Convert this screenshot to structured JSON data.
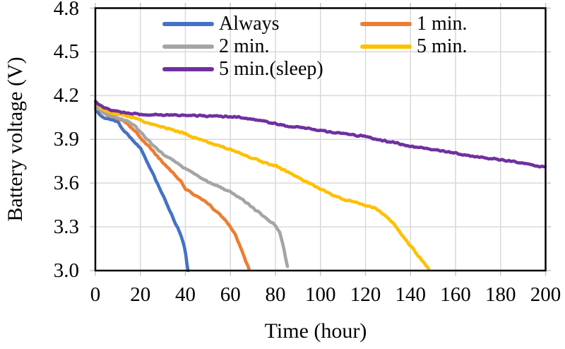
{
  "figure": {
    "background": "#ffffff"
  },
  "colors": {
    "grid": "#D9D9D9",
    "tick": "#C6C6C6",
    "axis_border": "#000000",
    "text": "#000000"
  },
  "chart_data": {
    "type": "line",
    "xlabel": "Time (hour)",
    "ylabel": "Battery voltage (V)",
    "xlim": [
      0,
      200
    ],
    "ylim": [
      3.0,
      4.8
    ],
    "x_ticks": [
      0,
      20,
      40,
      60,
      80,
      100,
      120,
      140,
      160,
      180,
      200
    ],
    "y_ticks": [
      "3.0",
      "3.3",
      "3.6",
      "3.9",
      "4.2",
      "4.5",
      "4.8"
    ],
    "grid": true,
    "legend_position": "inside-top",
    "legend_columns": 2,
    "series": [
      {
        "name": "Always",
        "color": "#4472C4",
        "points": [
          [
            0,
            4.11
          ],
          [
            2,
            4.07
          ],
          [
            4,
            4.05
          ],
          [
            6,
            4.04
          ],
          [
            8,
            4.03
          ],
          [
            10,
            4.02
          ],
          [
            12,
            3.97
          ],
          [
            15,
            3.92
          ],
          [
            18,
            3.87
          ],
          [
            20,
            3.84
          ],
          [
            22,
            3.78
          ],
          [
            24,
            3.71
          ],
          [
            26,
            3.65
          ],
          [
            28,
            3.58
          ],
          [
            30,
            3.52
          ],
          [
            32,
            3.45
          ],
          [
            34,
            3.38
          ],
          [
            36,
            3.31
          ],
          [
            37.5,
            3.26
          ],
          [
            39,
            3.2
          ],
          [
            40,
            3.13
          ],
          [
            40.6,
            3.06
          ],
          [
            41.2,
            3.0
          ]
        ]
      },
      {
        "name": "1 min.",
        "color": "#ED7D31",
        "points": [
          [
            0,
            4.13
          ],
          [
            3,
            4.09
          ],
          [
            6,
            4.06
          ],
          [
            9,
            4.05
          ],
          [
            12,
            4.03
          ],
          [
            14,
            4.01
          ],
          [
            16,
            3.98
          ],
          [
            18,
            3.95
          ],
          [
            20,
            3.91
          ],
          [
            25,
            3.83
          ],
          [
            30,
            3.74
          ],
          [
            35,
            3.66
          ],
          [
            38.5,
            3.6
          ],
          [
            40,
            3.56
          ],
          [
            45,
            3.51
          ],
          [
            50,
            3.46
          ],
          [
            54,
            3.4
          ],
          [
            57,
            3.36
          ],
          [
            60,
            3.3
          ],
          [
            62,
            3.25
          ],
          [
            64,
            3.18
          ],
          [
            66,
            3.1
          ],
          [
            68,
            3.02
          ],
          [
            68.7,
            3.0
          ]
        ]
      },
      {
        "name": "2 min.",
        "color": "#A5A5A5",
        "points": [
          [
            0,
            4.12
          ],
          [
            4,
            4.08
          ],
          [
            8,
            4.06
          ],
          [
            12,
            4.04
          ],
          [
            15,
            4.02
          ],
          [
            17,
            4.0
          ],
          [
            20,
            3.95
          ],
          [
            25,
            3.87
          ],
          [
            30,
            3.8
          ],
          [
            35,
            3.75
          ],
          [
            40,
            3.7
          ],
          [
            45,
            3.655
          ],
          [
            50,
            3.61
          ],
          [
            55,
            3.575
          ],
          [
            60,
            3.54
          ],
          [
            65,
            3.49
          ],
          [
            70,
            3.43
          ],
          [
            75,
            3.37
          ],
          [
            78,
            3.335
          ],
          [
            80,
            3.31
          ],
          [
            82,
            3.26
          ],
          [
            84,
            3.13
          ],
          [
            85,
            3.05
          ],
          [
            85.8,
            3.0
          ]
        ]
      },
      {
        "name": "5 min.",
        "color": "#FFC000",
        "points": [
          [
            0,
            4.15
          ],
          [
            3,
            4.11
          ],
          [
            6,
            4.09
          ],
          [
            10,
            4.07
          ],
          [
            14,
            4.06
          ],
          [
            18,
            4.045
          ],
          [
            22,
            4.02
          ],
          [
            26,
            4.0
          ],
          [
            30,
            3.985
          ],
          [
            35,
            3.96
          ],
          [
            40,
            3.94
          ],
          [
            45,
            3.905
          ],
          [
            50,
            3.88
          ],
          [
            55,
            3.855
          ],
          [
            60,
            3.83
          ],
          [
            65,
            3.8
          ],
          [
            70,
            3.77
          ],
          [
            75,
            3.74
          ],
          [
            80,
            3.72
          ],
          [
            85,
            3.68
          ],
          [
            90,
            3.64
          ],
          [
            95,
            3.6
          ],
          [
            100,
            3.56
          ],
          [
            105,
            3.52
          ],
          [
            110,
            3.49
          ],
          [
            115,
            3.47
          ],
          [
            120,
            3.45
          ],
          [
            124,
            3.43
          ],
          [
            127,
            3.4
          ],
          [
            130,
            3.36
          ],
          [
            133,
            3.31
          ],
          [
            136,
            3.25
          ],
          [
            139,
            3.19
          ],
          [
            142,
            3.13
          ],
          [
            145,
            3.07
          ],
          [
            147,
            3.03
          ],
          [
            148.5,
            3.0
          ]
        ]
      },
      {
        "name": "5 min.(sleep)",
        "color": "#7030A0",
        "points": [
          [
            0,
            4.16
          ],
          [
            2,
            4.13
          ],
          [
            5,
            4.11
          ],
          [
            8,
            4.095
          ],
          [
            12,
            4.085
          ],
          [
            16,
            4.078
          ],
          [
            20,
            4.072
          ],
          [
            25,
            4.07
          ],
          [
            30,
            4.068
          ],
          [
            35,
            4.067
          ],
          [
            40,
            4.066
          ],
          [
            45,
            4.063
          ],
          [
            50,
            4.06
          ],
          [
            55,
            4.058
          ],
          [
            60,
            4.055
          ],
          [
            65,
            4.05
          ],
          [
            70,
            4.04
          ],
          [
            74,
            4.03
          ],
          [
            78,
            4.015
          ],
          [
            82,
            4.0
          ],
          [
            86,
            3.99
          ],
          [
            90,
            3.985
          ],
          [
            95,
            3.975
          ],
          [
            100,
            3.96
          ],
          [
            105,
            3.95
          ],
          [
            110,
            3.94
          ],
          [
            115,
            3.93
          ],
          [
            120,
            3.92
          ],
          [
            125,
            3.9
          ],
          [
            130,
            3.885
          ],
          [
            135,
            3.87
          ],
          [
            140,
            3.855
          ],
          [
            145,
            3.84
          ],
          [
            150,
            3.83
          ],
          [
            155,
            3.82
          ],
          [
            160,
            3.805
          ],
          [
            165,
            3.79
          ],
          [
            170,
            3.78
          ],
          [
            175,
            3.77
          ],
          [
            180,
            3.76
          ],
          [
            185,
            3.75
          ],
          [
            190,
            3.735
          ],
          [
            195,
            3.72
          ],
          [
            200,
            3.71
          ]
        ]
      }
    ]
  }
}
